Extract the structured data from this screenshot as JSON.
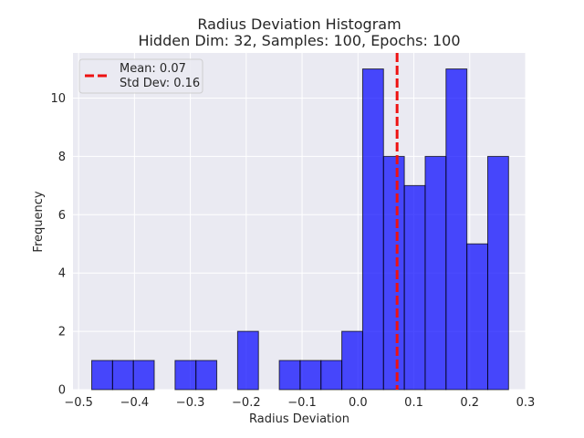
{
  "chart_data": {
    "type": "bar",
    "title": "Radius Deviation Histogram",
    "subtitle": "Hidden Dim: 32, Samples: 100, Epochs: 100",
    "xlabel": "Radius Deviation",
    "ylabel": "Frequency",
    "xlim": [
      -0.51,
      0.3
    ],
    "ylim": [
      0,
      11.55
    ],
    "xticks": [
      -0.5,
      -0.4,
      -0.3,
      -0.2,
      -0.1,
      0.0,
      0.1,
      0.2,
      0.3
    ],
    "yticks": [
      0,
      2,
      4,
      6,
      8,
      10
    ],
    "bin_width": 0.0373,
    "bins": [
      {
        "left": -0.4765,
        "count": 1
      },
      {
        "left": -0.4392,
        "count": 1
      },
      {
        "left": -0.4019,
        "count": 1
      },
      {
        "left": -0.3646,
        "count": 0
      },
      {
        "left": -0.3273,
        "count": 1
      },
      {
        "left": -0.29,
        "count": 1
      },
      {
        "left": -0.2527,
        "count": 0
      },
      {
        "left": -0.2154,
        "count": 2
      },
      {
        "left": -0.1781,
        "count": 0
      },
      {
        "left": -0.1408,
        "count": 1
      },
      {
        "left": -0.1035,
        "count": 1
      },
      {
        "left": -0.0662,
        "count": 1
      },
      {
        "left": -0.0289,
        "count": 2
      },
      {
        "left": 0.0084,
        "count": 11
      },
      {
        "left": 0.0457,
        "count": 8
      },
      {
        "left": 0.083,
        "count": 7
      },
      {
        "left": 0.1203,
        "count": 8
      },
      {
        "left": 0.1576,
        "count": 11
      },
      {
        "left": 0.1949,
        "count": 5
      },
      {
        "left": 0.2322,
        "count": 8
      }
    ],
    "mean_line": {
      "value": 0.07,
      "color": "#ee1111",
      "style": "dashed"
    },
    "legend": {
      "position": "top-left",
      "entries": [
        "Mean: 0.07",
        "Std Dev: 0.16"
      ]
    },
    "bar_color": "#0000ff",
    "grid": true
  }
}
